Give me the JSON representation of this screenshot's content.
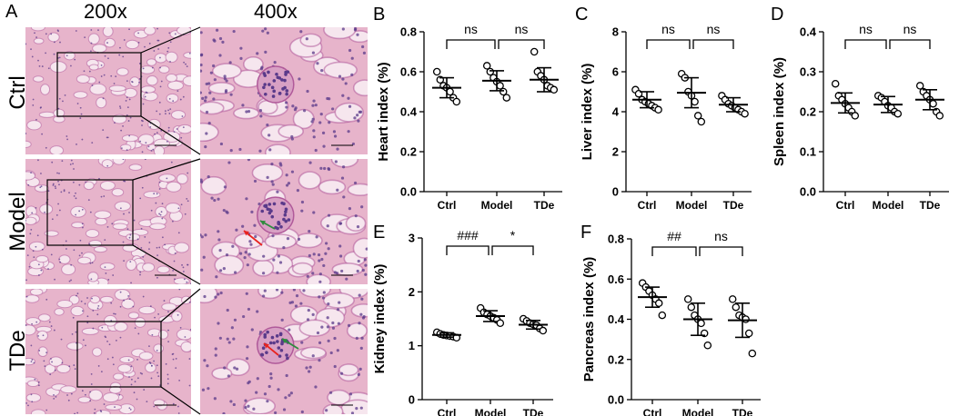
{
  "figure": {
    "panel_a_label": "A",
    "magnifications": [
      "200x",
      "400x"
    ],
    "groups": [
      "Ctrl",
      "Model",
      "TDe"
    ],
    "micrograph_colors": {
      "tissue": "#e7b4cb",
      "stain_dark": "#b05a9a",
      "nuclei": "#5a3a8a",
      "lumen": "#f6e6ee"
    }
  },
  "chart_data": [
    {
      "panel": "B",
      "type": "scatter",
      "ylabel": "Heart index (%)",
      "categories": [
        "Ctrl",
        "Model",
        "TDe"
      ],
      "ylim": [
        0,
        0.8
      ],
      "yticks": [
        "0.0",
        "0.2",
        "0.4",
        "0.6",
        "0.8"
      ],
      "comparisons": [
        {
          "from": 0,
          "to": 1,
          "label": "ns"
        },
        {
          "from": 1,
          "to": 2,
          "label": "ns"
        }
      ],
      "series": [
        {
          "points": [
            0.6,
            0.56,
            0.53,
            0.52,
            0.5,
            0.47,
            0.45
          ],
          "mean": 0.52,
          "sd": 0.05
        },
        {
          "points": [
            0.63,
            0.6,
            0.57,
            0.55,
            0.53,
            0.5,
            0.47
          ],
          "mean": 0.555,
          "sd": 0.05
        },
        {
          "points": [
            0.7,
            0.6,
            0.58,
            0.56,
            0.53,
            0.52,
            0.51
          ],
          "mean": 0.56,
          "sd": 0.06
        }
      ]
    },
    {
      "panel": "C",
      "type": "scatter",
      "ylabel": "Liver index (%)",
      "categories": [
        "Ctrl",
        "Model",
        "TDe"
      ],
      "ylim": [
        0,
        8
      ],
      "yticks": [
        "0",
        "2",
        "4",
        "6",
        "8"
      ],
      "comparisons": [
        {
          "from": 0,
          "to": 1,
          "label": "ns"
        },
        {
          "from": 1,
          "to": 2,
          "label": "ns"
        }
      ],
      "series": [
        {
          "points": [
            5.1,
            4.9,
            4.6,
            4.5,
            4.4,
            4.3,
            4.2,
            4.1
          ],
          "mean": 4.6,
          "sd": 0.4
        },
        {
          "points": [
            5.9,
            5.7,
            5.0,
            4.8,
            4.5,
            3.8,
            3.5
          ],
          "mean": 4.95,
          "sd": 0.75
        },
        {
          "points": [
            4.8,
            4.6,
            4.4,
            4.3,
            4.2,
            4.1,
            4.0,
            3.9
          ],
          "mean": 4.35,
          "sd": 0.35
        }
      ]
    },
    {
      "panel": "D",
      "type": "scatter",
      "ylabel": "Spleen index (%)",
      "categories": [
        "Ctrl",
        "Model",
        "TDe"
      ],
      "ylim": [
        0,
        0.4
      ],
      "yticks": [
        "0.0",
        "0.1",
        "0.2",
        "0.3",
        "0.4"
      ],
      "comparisons": [
        {
          "from": 0,
          "to": 1,
          "label": "ns"
        },
        {
          "from": 1,
          "to": 2,
          "label": "ns"
        }
      ],
      "series": [
        {
          "points": [
            0.27,
            0.24,
            0.23,
            0.22,
            0.21,
            0.2,
            0.19
          ],
          "mean": 0.222,
          "sd": 0.025
        },
        {
          "points": [
            0.24,
            0.235,
            0.225,
            0.215,
            0.21,
            0.2,
            0.195
          ],
          "mean": 0.218,
          "sd": 0.02
        },
        {
          "points": [
            0.265,
            0.25,
            0.24,
            0.23,
            0.22,
            0.2,
            0.19
          ],
          "mean": 0.23,
          "sd": 0.025
        }
      ]
    },
    {
      "panel": "E",
      "type": "scatter",
      "ylabel": "Kidney index (%)",
      "categories": [
        "Ctrl",
        "Model",
        "TDe"
      ],
      "ylim": [
        0,
        3
      ],
      "yticks": [
        "0",
        "1",
        "2",
        "3"
      ],
      "comparisons": [
        {
          "from": 0,
          "to": 1,
          "label": "###"
        },
        {
          "from": 1,
          "to": 2,
          "label": "*"
        }
      ],
      "series": [
        {
          "points": [
            1.25,
            1.22,
            1.2,
            1.19,
            1.18,
            1.17,
            1.15
          ],
          "mean": 1.2,
          "sd": 0.04
        },
        {
          "points": [
            1.7,
            1.62,
            1.58,
            1.55,
            1.52,
            1.48,
            1.42
          ],
          "mean": 1.55,
          "sd": 0.1
        },
        {
          "points": [
            1.5,
            1.46,
            1.42,
            1.4,
            1.38,
            1.32,
            1.28
          ],
          "mean": 1.39,
          "sd": 0.08
        }
      ]
    },
    {
      "panel": "F",
      "type": "scatter",
      "ylabel": "Pancreas index (%)",
      "categories": [
        "Ctrl",
        "Model",
        "TDe"
      ],
      "ylim": [
        0,
        0.8
      ],
      "yticks": [
        "0.0",
        "0.2",
        "0.4",
        "0.6",
        "0.8"
      ],
      "comparisons": [
        {
          "from": 0,
          "to": 1,
          "label": "##"
        },
        {
          "from": 1,
          "to": 2,
          "label": "ns"
        }
      ],
      "series": [
        {
          "points": [
            0.58,
            0.56,
            0.54,
            0.52,
            0.5,
            0.48,
            0.42
          ],
          "mean": 0.51,
          "sd": 0.05
        },
        {
          "points": [
            0.5,
            0.46,
            0.42,
            0.4,
            0.38,
            0.33,
            0.27
          ],
          "mean": 0.4,
          "sd": 0.08
        },
        {
          "points": [
            0.5,
            0.46,
            0.42,
            0.41,
            0.4,
            0.33,
            0.23
          ],
          "mean": 0.395,
          "sd": 0.085
        }
      ]
    }
  ]
}
